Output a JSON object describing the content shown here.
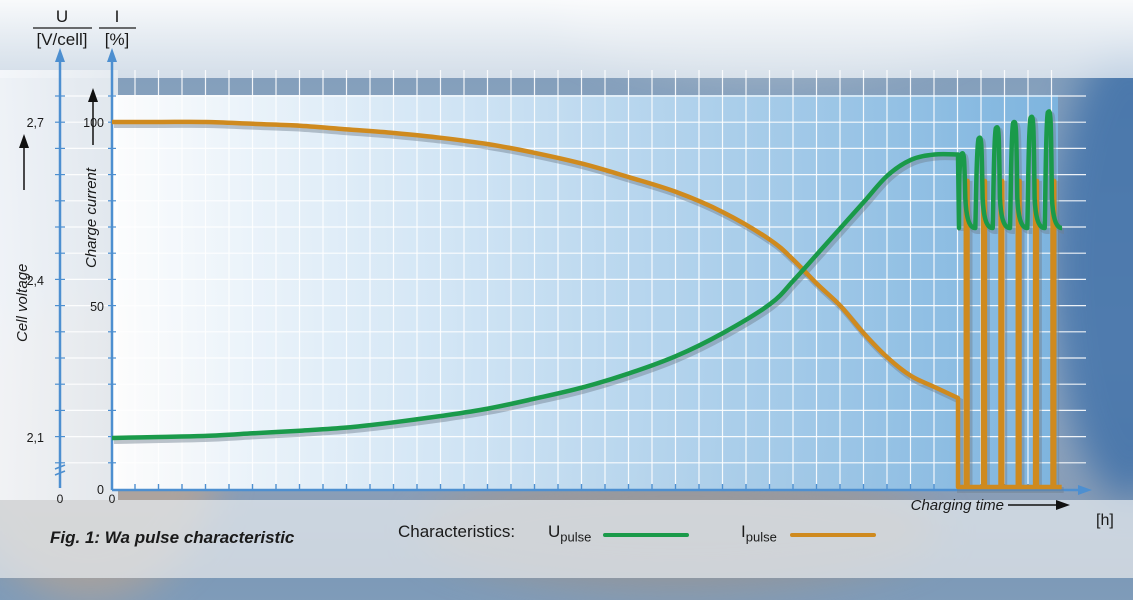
{
  "chart_data": {
    "type": "line",
    "title": "",
    "caption": "Fig. 1: Wa pulse characteristic",
    "axes": {
      "voltage": {
        "symbol": "U",
        "unit": "[V/cell]",
        "label": "Cell voltage",
        "ticks": [
          "2,1",
          "2,4",
          "2,7"
        ],
        "zero_label": "0",
        "range": [
          2.1,
          2.7
        ]
      },
      "current": {
        "symbol": "I",
        "unit": "[%]",
        "label": "Charge current",
        "ticks": [
          "0",
          "50",
          "100"
        ],
        "range": [
          0,
          100
        ]
      },
      "time": {
        "label": "Charging time",
        "unit": "[h]",
        "origin_label": "0"
      }
    },
    "legend": {
      "title": "Characteristics:",
      "placement": "bottom",
      "items": [
        {
          "main": "U",
          "sub": "pulse",
          "color": "#1a9a4a"
        },
        {
          "main": "I",
          "sub": "pulse",
          "color": "#cf8a1e"
        }
      ]
    },
    "series": [
      {
        "name": "Upulse",
        "axis": "voltage",
        "color": "#1a9a4a",
        "x_phase1": [
          0,
          5,
          10,
          15,
          20,
          25,
          30,
          35,
          40,
          45,
          50,
          55,
          60,
          65,
          70,
          72.5,
          75,
          77.5,
          80,
          82.5,
          85,
          87.5,
          90
        ],
        "y_phase1": [
          2.1,
          2.102,
          2.104,
          2.109,
          2.114,
          2.12,
          2.13,
          2.142,
          2.156,
          2.175,
          2.196,
          2.223,
          2.256,
          2.3,
          2.355,
          2.4,
          2.45,
          2.5,
          2.55,
          2.6,
          2.63,
          2.64,
          2.64
        ],
        "pulse_peaks": [
          2.64,
          2.67,
          2.69,
          2.7,
          2.71,
          2.72
        ],
        "pulse_trough": 2.5
      },
      {
        "name": "Ipulse",
        "axis": "current",
        "color": "#cf8a1e",
        "x_phase1": [
          0,
          5,
          10,
          15,
          20,
          25,
          30,
          35,
          40,
          45,
          50,
          55,
          60,
          65,
          70,
          72.5,
          75,
          77.5,
          80,
          82.5,
          85,
          87.5,
          90
        ],
        "y_phase1": [
          100,
          100,
          100,
          99.5,
          99,
          98,
          97,
          95.7,
          94,
          91.6,
          88.7,
          85,
          81,
          75.5,
          68,
          62.5,
          56,
          50,
          42.5,
          36,
          31,
          28,
          25
        ],
        "pulse_high": 84,
        "pulse_low": 0
      }
    ]
  }
}
